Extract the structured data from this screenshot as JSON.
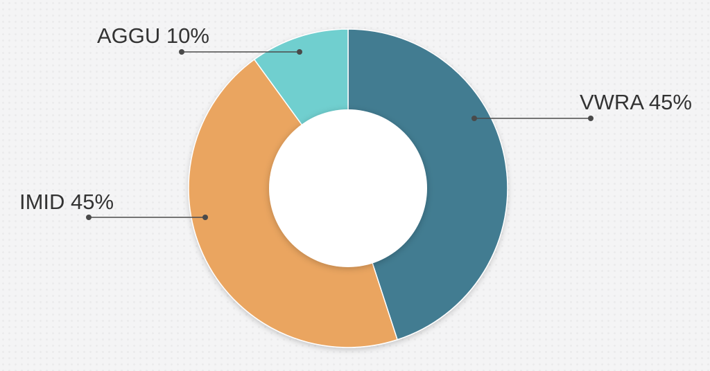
{
  "chart_data": {
    "type": "pie",
    "subtype": "donut",
    "title": "",
    "slices": [
      {
        "label": "VWRA",
        "value": 45,
        "display": "VWRA 45%",
        "color": "#437b91"
      },
      {
        "label": "IMID",
        "value": 45,
        "display": "IMID 45%",
        "color": "#eaa560"
      },
      {
        "label": "AGGU",
        "value": 10,
        "display": "AGGU 10%",
        "color": "#6fcfcf"
      }
    ],
    "legend": "none",
    "labels_outside": true
  }
}
